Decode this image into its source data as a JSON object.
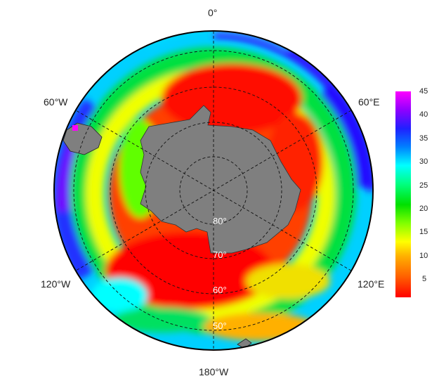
{
  "map": {
    "projection": "south polar stereographic",
    "center": "South Pole",
    "land_color": "#7f7f7f",
    "graticule_style": "dashed"
  },
  "longitude_labels": [
    {
      "id": "lon-0",
      "text": "0°"
    },
    {
      "id": "lon-60e",
      "text": "60°E"
    },
    {
      "id": "lon-120e",
      "text": "120°E"
    },
    {
      "id": "lon-180w",
      "text": "180°W"
    },
    {
      "id": "lon-120w",
      "text": "120°W"
    },
    {
      "id": "lon-60w",
      "text": "60°W"
    }
  ],
  "latitude_labels": [
    {
      "id": "lat-80",
      "text": "80°"
    },
    {
      "id": "lat-70",
      "text": "70°"
    },
    {
      "id": "lat-60",
      "text": "60°"
    },
    {
      "id": "lat-50",
      "text": "50°"
    }
  ],
  "colorbar": {
    "min": 1,
    "max": 45,
    "ticks": [
      "45",
      "40",
      "35",
      "30",
      "25",
      "20",
      "15",
      "10",
      "5"
    ],
    "colors": [
      "#ff00ff",
      "#9000ff",
      "#2020ff",
      "#0080ff",
      "#00ffff",
      "#00ff80",
      "#00e000",
      "#80ff00",
      "#ffff00",
      "#ffb000",
      "#ff6000",
      "#ff0000"
    ]
  }
}
